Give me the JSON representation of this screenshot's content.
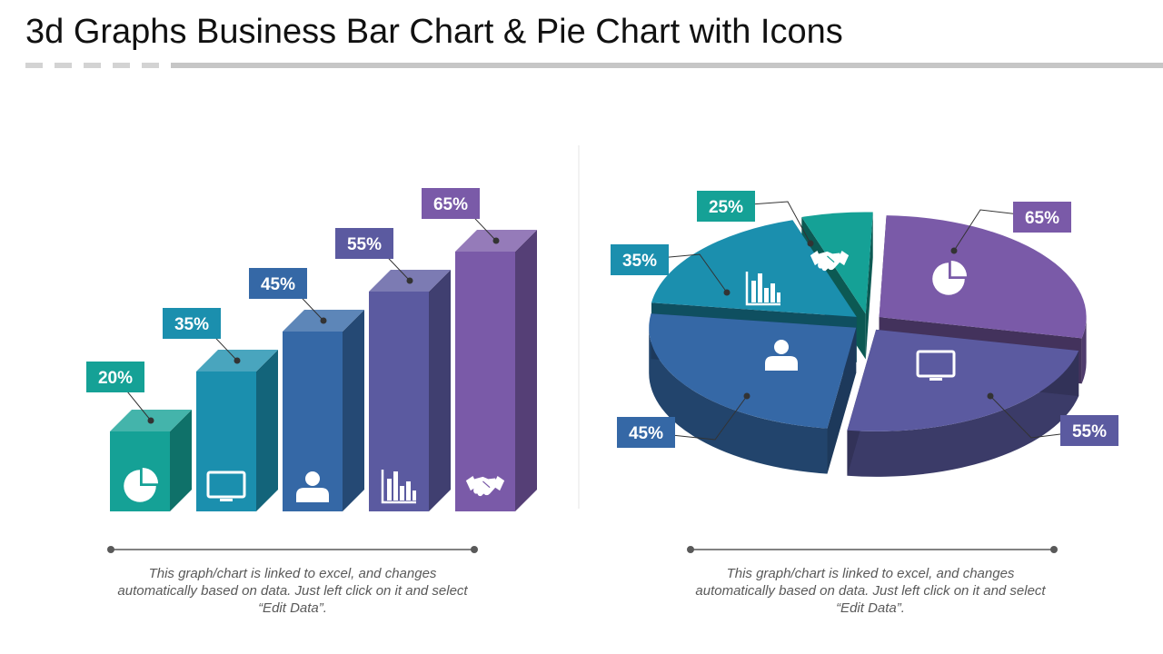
{
  "title": "3d Graphs Business Bar Chart & Pie Chart with Icons",
  "captions": {
    "left": "This graph/chart is linked to excel, and changes automatically based on data. Just left click on it and select “Edit Data”.",
    "right": "This graph/chart is linked to excel, and changes automatically based on data. Just left click on it and select “Edit Data”."
  },
  "chart_data": [
    {
      "type": "bar",
      "title": "",
      "values": [
        20,
        35,
        45,
        55,
        65
      ],
      "data_labels": [
        "20%",
        "35%",
        "45%",
        "55%",
        "65%"
      ],
      "icons": [
        "pie-chart-icon",
        "monitor-icon",
        "user-icon",
        "bar-graph-icon",
        "handshake-icon"
      ],
      "colors": [
        "#15a196",
        "#1b8fae",
        "#3568a6",
        "#5b5aa0",
        "#7a5aa8"
      ],
      "grid": false
    },
    {
      "type": "pie",
      "title": "",
      "slices": [
        {
          "label": "65%",
          "value": 65,
          "icon": "pie-chart-icon",
          "color": "#7a5aa8"
        },
        {
          "label": "55%",
          "value": 55,
          "icon": "monitor-icon",
          "color": "#5b5aa0"
        },
        {
          "label": "45%",
          "value": 45,
          "icon": "user-icon",
          "color": "#3568a6"
        },
        {
          "label": "35%",
          "value": 35,
          "icon": "bar-graph-icon",
          "color": "#1b8fae"
        },
        {
          "label": "25%",
          "value": 25,
          "icon": "handshake-icon",
          "color": "#15a196"
        }
      ]
    }
  ]
}
